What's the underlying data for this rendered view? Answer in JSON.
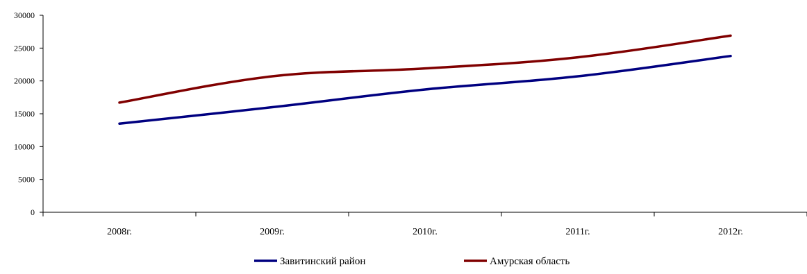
{
  "chart_data": {
    "type": "line",
    "title": "",
    "xlabel": "",
    "ylabel": "",
    "categories": [
      "2008г.",
      "2009г.",
      "2010г.",
      "2011г.",
      "2012г."
    ],
    "ylim": [
      0,
      30000
    ],
    "yticks": [
      0,
      5000,
      10000,
      15000,
      20000,
      25000,
      30000
    ],
    "ytick_labels": [
      "0",
      "5000",
      "10000",
      "15000",
      "20000",
      "25000",
      "30000"
    ],
    "grid": false,
    "legend_position": "bottom",
    "series": [
      {
        "name": "Завитинский район",
        "color": "#000080",
        "values": [
          13500,
          16000,
          18700,
          20700,
          23800
        ]
      },
      {
        "name": "Амурская область",
        "color": "#800000",
        "values": [
          16700,
          20700,
          21900,
          23600,
          26900
        ]
      }
    ]
  }
}
